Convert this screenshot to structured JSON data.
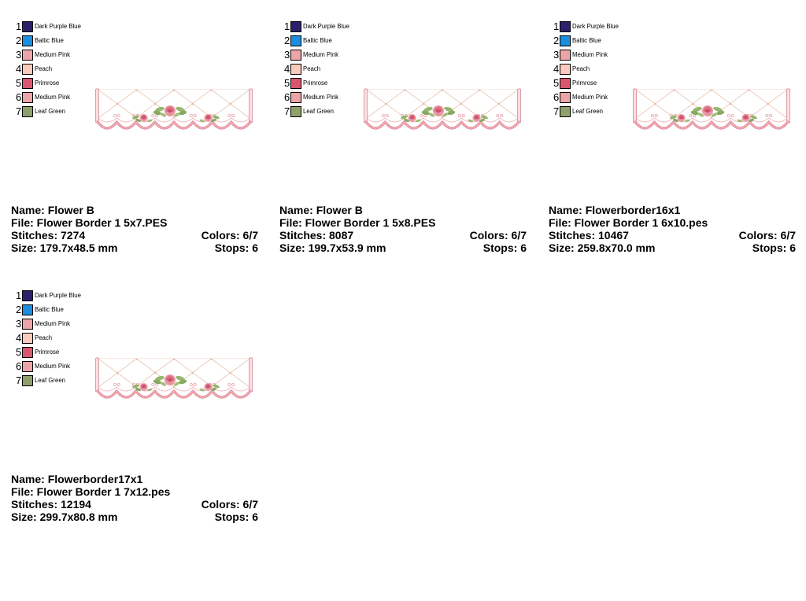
{
  "cards": [
    {
      "thread_list": [
        {
          "num": "1",
          "name": "Dark Purple Blue",
          "hex": "#2c1f6b"
        },
        {
          "num": "2",
          "name": "Baltic Blue",
          "hex": "#1c8ee0"
        },
        {
          "num": "3",
          "name": "Medium Pink",
          "hex": "#eba4a8"
        },
        {
          "num": "4",
          "name": "Peach",
          "hex": "#f9cbbc"
        },
        {
          "num": "5",
          "name": "Primrose",
          "hex": "#da566e"
        },
        {
          "num": "6",
          "name": "Medium Pink",
          "hex": "#eba4a8"
        },
        {
          "num": "7",
          "name": "Leaf Green",
          "hex": "#8fa06c"
        }
      ],
      "name_label": "Name:",
      "name": "Flower B",
      "file_label": "File:",
      "file": "Flower Border 1 5x7.PES",
      "stitches_label": "Stitches:",
      "stitches": "7274",
      "colors_label": "Colors:",
      "colors_count": "6/7",
      "size_label": "Size:",
      "size": "179.7x48.5 mm",
      "stops_label": "Stops:",
      "stops": "6"
    },
    {
      "thread_list": [
        {
          "num": "1",
          "name": "Dark Purple Blue",
          "hex": "#2c1f6b"
        },
        {
          "num": "2",
          "name": "Baltic Blue",
          "hex": "#1c8ee0"
        },
        {
          "num": "3",
          "name": "Medium Pink",
          "hex": "#eba4a8"
        },
        {
          "num": "4",
          "name": "Peach",
          "hex": "#f9cbbc"
        },
        {
          "num": "5",
          "name": "Primrose",
          "hex": "#da566e"
        },
        {
          "num": "6",
          "name": "Medium Pink",
          "hex": "#eba4a8"
        },
        {
          "num": "7",
          "name": "Leaf Green",
          "hex": "#8fa06c"
        }
      ],
      "name_label": "Name:",
      "name": "Flower B",
      "file_label": "File:",
      "file": "Flower Border 1 5x8.PES",
      "stitches_label": "Stitches:",
      "stitches": "8087",
      "colors_label": "Colors:",
      "colors_count": "6/7",
      "size_label": "Size:",
      "size": "199.7x53.9 mm",
      "stops_label": "Stops:",
      "stops": "6"
    },
    {
      "thread_list": [
        {
          "num": "1",
          "name": "Dark Purple Blue",
          "hex": "#2c1f6b"
        },
        {
          "num": "2",
          "name": "Baltic Blue",
          "hex": "#1c8ee0"
        },
        {
          "num": "3",
          "name": "Medium Pink",
          "hex": "#eba4a8"
        },
        {
          "num": "4",
          "name": "Peach",
          "hex": "#f9cbbc"
        },
        {
          "num": "5",
          "name": "Primrose",
          "hex": "#da566e"
        },
        {
          "num": "6",
          "name": "Medium Pink",
          "hex": "#eba4a8"
        },
        {
          "num": "7",
          "name": "Leaf Green",
          "hex": "#8fa06c"
        }
      ],
      "name_label": "Name:",
      "name": "Flowerborder16x1",
      "file_label": "File:",
      "file": "Flower Border 1 6x10.pes",
      "stitches_label": "Stitches:",
      "stitches": "10467",
      "colors_label": "Colors:",
      "colors_count": "6/7",
      "size_label": "Size:",
      "size": "259.8x70.0 mm",
      "stops_label": "Stops:",
      "stops": "6"
    },
    {
      "thread_list": [
        {
          "num": "1",
          "name": "Dark Purple Blue",
          "hex": "#2c1f6b"
        },
        {
          "num": "2",
          "name": "Baltic Blue",
          "hex": "#1c8ee0"
        },
        {
          "num": "3",
          "name": "Medium Pink",
          "hex": "#eba4a8"
        },
        {
          "num": "4",
          "name": "Peach",
          "hex": "#f9cbbc"
        },
        {
          "num": "5",
          "name": "Primrose",
          "hex": "#da566e"
        },
        {
          "num": "6",
          "name": "Medium Pink",
          "hex": "#eba4a8"
        },
        {
          "num": "7",
          "name": "Leaf Green",
          "hex": "#8fa06c"
        }
      ],
      "name_label": "Name:",
      "name": "Flowerborder17x1",
      "file_label": "File:",
      "file": "Flower Border 1 7x12.pes",
      "stitches_label": "Stitches:",
      "stitches": "12194",
      "colors_label": "Colors:",
      "colors_count": "6/7",
      "size_label": "Size:",
      "size": "299.7x80.8 mm",
      "stops_label": "Stops:",
      "stops": "6"
    }
  ]
}
